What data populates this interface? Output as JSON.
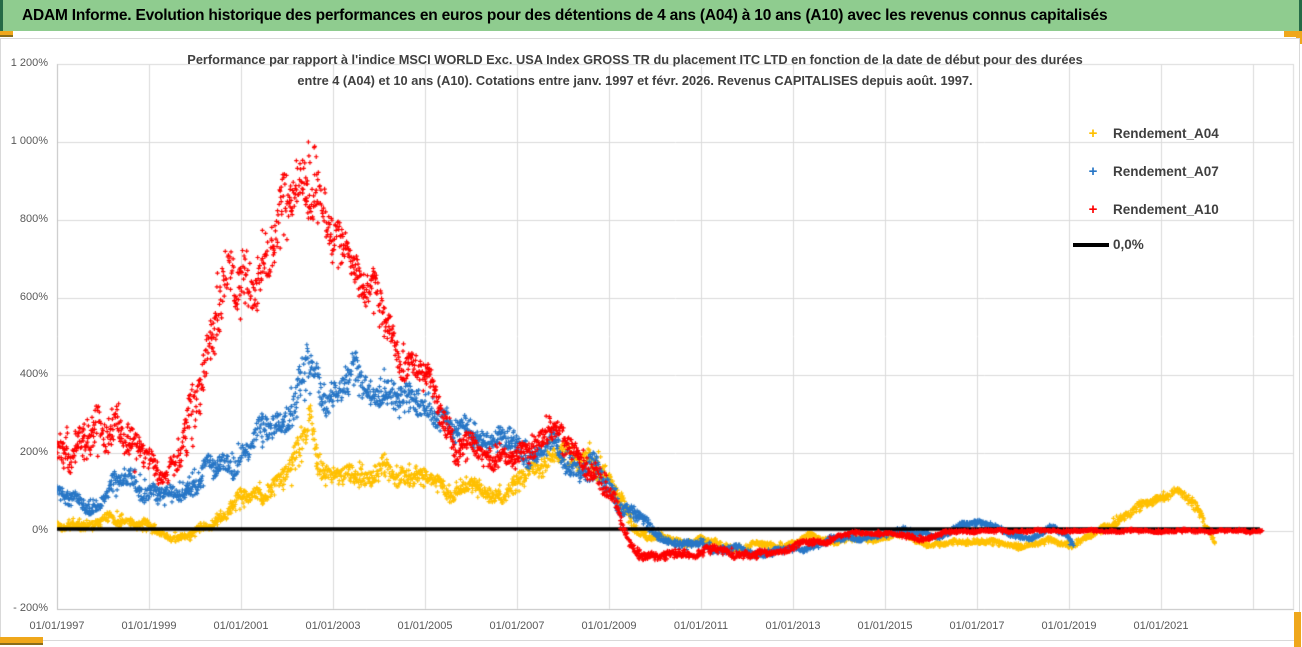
{
  "banner": {
    "title": "ADAM Informe. Evolution historique des performances en euros pour des détentions de 4 ans (A04) à 10 ans (A10) avec les revenus connus capitalisés"
  },
  "chart": {
    "title_line1": "Performance par rapport à l'indice MSCI WORLD Exc. USA Index GROSS TR  du placement ITC LTD en fonction de la date de début pour des durées",
    "title_line2": "entre 4 (A04) et 10 ans (A10). Cotations entre janv. 1997 et févr. 2026. Revenus CAPITALISES depuis août. 1997.",
    "legend": [
      {
        "label": "Rendement_A04",
        "marker": "plus",
        "color": "#FFC000"
      },
      {
        "label": "Rendement_A07",
        "marker": "plus",
        "color": "#2776C6"
      },
      {
        "label": "Rendement_A10",
        "marker": "plus",
        "color": "#FE0000"
      },
      {
        "label": "0,0%",
        "marker": "line",
        "color": "#000000"
      }
    ]
  },
  "chart_data": {
    "type": "scatter",
    "marker": "plus",
    "grid": true,
    "x_axis": {
      "kind": "date-start-of-holding",
      "labels": [
        "01/01/1997",
        "01/01/1999",
        "01/01/2001",
        "01/01/2003",
        "01/01/2005",
        "01/01/2007",
        "01/01/2009",
        "01/01/2011",
        "01/01/2013",
        "01/01/2015",
        "01/01/2017",
        "01/01/2019",
        "01/01/2021"
      ],
      "label_interval_years": 2,
      "range_years": [
        1997.0,
        2023.95
      ]
    },
    "y_axis": {
      "unit": "percent",
      "labels": [
        "1 200%",
        "1 000%",
        "800%",
        "600%",
        "400%",
        "200%",
        "0%",
        "- 200%"
      ],
      "tick_values": [
        1200,
        1000,
        800,
        600,
        400,
        200,
        0,
        -200
      ],
      "range_pct": [
        -200,
        1200
      ]
    },
    "zero_line": {
      "label": "0,0%",
      "value": 0,
      "color": "#000000",
      "start_year": 1997.0,
      "end_year": 2023.15
    },
    "series": [
      {
        "name": "Rendement_A04",
        "color": "#FFC000",
        "seed": 42,
        "anchors": [
          [
            1997.0,
            10,
            15
          ],
          [
            1997.4,
            20,
            15
          ],
          [
            1997.8,
            10,
            15
          ],
          [
            1998.2,
            40,
            20
          ],
          [
            1998.6,
            20,
            15
          ],
          [
            1999.0,
            10,
            15
          ],
          [
            1999.4,
            -10,
            12
          ],
          [
            1999.8,
            -20,
            12
          ],
          [
            2000.2,
            10,
            15
          ],
          [
            2000.6,
            40,
            20
          ],
          [
            2001.0,
            80,
            25
          ],
          [
            2001.4,
            100,
            30
          ],
          [
            2001.8,
            120,
            30
          ],
          [
            2002.1,
            150,
            40
          ],
          [
            2002.35,
            250,
            70
          ],
          [
            2002.5,
            320,
            50
          ],
          [
            2002.65,
            200,
            50
          ],
          [
            2002.9,
            130,
            30
          ],
          [
            2003.2,
            140,
            30
          ],
          [
            2003.5,
            160,
            35
          ],
          [
            2003.8,
            130,
            30
          ],
          [
            2004.1,
            160,
            30
          ],
          [
            2004.4,
            140,
            30
          ],
          [
            2004.7,
            150,
            30
          ],
          [
            2005.0,
            130,
            30
          ],
          [
            2005.3,
            120,
            25
          ],
          [
            2005.6,
            100,
            25
          ],
          [
            2005.9,
            120,
            25
          ],
          [
            2006.2,
            100,
            25
          ],
          [
            2006.5,
            90,
            25
          ],
          [
            2006.8,
            110,
            25
          ],
          [
            2007.1,
            130,
            30
          ],
          [
            2007.4,
            150,
            30
          ],
          [
            2007.7,
            200,
            35
          ],
          [
            2008.0,
            210,
            35
          ],
          [
            2008.3,
            170,
            30
          ],
          [
            2008.6,
            200,
            40
          ],
          [
            2008.9,
            150,
            35
          ],
          [
            2009.2,
            80,
            30
          ],
          [
            2009.5,
            20,
            20
          ],
          [
            2009.8,
            -10,
            15
          ],
          [
            2010.2,
            -20,
            12
          ],
          [
            2010.6,
            -30,
            12
          ],
          [
            2011.0,
            -20,
            12
          ],
          [
            2011.4,
            -40,
            12
          ],
          [
            2011.8,
            -45,
            12
          ],
          [
            2012.2,
            -35,
            10
          ],
          [
            2012.6,
            -40,
            10
          ],
          [
            2013.0,
            -30,
            10
          ],
          [
            2013.4,
            -15,
            10
          ],
          [
            2013.8,
            -25,
            10
          ],
          [
            2014.2,
            -20,
            8
          ],
          [
            2014.6,
            -25,
            8
          ],
          [
            2015.0,
            -15,
            8
          ],
          [
            2015.4,
            -10,
            8
          ],
          [
            2015.8,
            -30,
            8
          ],
          [
            2016.2,
            -35,
            8
          ],
          [
            2016.6,
            -30,
            8
          ],
          [
            2017.0,
            -25,
            8
          ],
          [
            2017.4,
            -30,
            8
          ],
          [
            2017.8,
            -40,
            8
          ],
          [
            2018.2,
            -35,
            8
          ],
          [
            2018.6,
            -25,
            8
          ],
          [
            2019.0,
            -35,
            10
          ],
          [
            2019.4,
            -20,
            10
          ],
          [
            2019.8,
            10,
            12
          ],
          [
            2020.2,
            40,
            15
          ],
          [
            2020.6,
            60,
            15
          ],
          [
            2021.0,
            90,
            15
          ],
          [
            2021.3,
            105,
            12
          ],
          [
            2021.6,
            80,
            15
          ],
          [
            2021.9,
            40,
            15
          ],
          [
            2022.1,
            -10,
            12
          ],
          [
            2022.17,
            -30,
            8
          ]
        ]
      },
      {
        "name": "Rendement_A07",
        "color": "#2776C6",
        "seed": 1337,
        "anchors": [
          [
            1997.0,
            100,
            30
          ],
          [
            1997.4,
            75,
            25
          ],
          [
            1997.8,
            65,
            25
          ],
          [
            1998.2,
            110,
            30
          ],
          [
            1998.6,
            140,
            35
          ],
          [
            1999.0,
            100,
            30
          ],
          [
            1999.4,
            85,
            25
          ],
          [
            1999.8,
            110,
            30
          ],
          [
            2000.2,
            150,
            40
          ],
          [
            2000.6,
            160,
            40
          ],
          [
            2001.0,
            200,
            40
          ],
          [
            2001.4,
            240,
            45
          ],
          [
            2001.8,
            290,
            50
          ],
          [
            2002.2,
            330,
            60
          ],
          [
            2002.45,
            420,
            90
          ],
          [
            2002.6,
            380,
            60
          ],
          [
            2002.9,
            350,
            50
          ],
          [
            2003.2,
            380,
            50
          ],
          [
            2003.5,
            400,
            50
          ],
          [
            2003.8,
            360,
            50
          ],
          [
            2004.1,
            380,
            45
          ],
          [
            2004.4,
            330,
            45
          ],
          [
            2004.7,
            340,
            40
          ],
          [
            2005.0,
            330,
            40
          ],
          [
            2005.3,
            290,
            40
          ],
          [
            2005.6,
            250,
            40
          ],
          [
            2005.9,
            280,
            35
          ],
          [
            2006.2,
            240,
            35
          ],
          [
            2006.5,
            220,
            35
          ],
          [
            2006.9,
            240,
            35
          ],
          [
            2007.2,
            200,
            35
          ],
          [
            2007.5,
            180,
            30
          ],
          [
            2007.8,
            230,
            40
          ],
          [
            2008.1,
            180,
            35
          ],
          [
            2008.4,
            150,
            30
          ],
          [
            2008.7,
            160,
            35
          ],
          [
            2009.0,
            120,
            35
          ],
          [
            2009.3,
            60,
            25
          ],
          [
            2009.6,
            40,
            20
          ],
          [
            2009.9,
            10,
            15
          ],
          [
            2010.2,
            -20,
            12
          ],
          [
            2010.6,
            -40,
            12
          ],
          [
            2011.0,
            -30,
            12
          ],
          [
            2011.4,
            -50,
            12
          ],
          [
            2011.8,
            -45,
            12
          ],
          [
            2012.2,
            -60,
            10
          ],
          [
            2012.6,
            -55,
            10
          ],
          [
            2013.0,
            -45,
            10
          ],
          [
            2013.4,
            -40,
            10
          ],
          [
            2013.8,
            -25,
            10
          ],
          [
            2014.2,
            -15,
            8
          ],
          [
            2014.6,
            -20,
            8
          ],
          [
            2015.0,
            -10,
            8
          ],
          [
            2015.4,
            5,
            8
          ],
          [
            2015.8,
            -10,
            8
          ],
          [
            2016.2,
            -15,
            8
          ],
          [
            2016.6,
            15,
            8
          ],
          [
            2017.0,
            20,
            8
          ],
          [
            2017.4,
            15,
            8
          ],
          [
            2017.8,
            -15,
            8
          ],
          [
            2018.2,
            -20,
            8
          ],
          [
            2018.6,
            15,
            8
          ],
          [
            2018.9,
            -10,
            10
          ],
          [
            2019.1,
            -40,
            8
          ]
        ]
      },
      {
        "name": "Rendement_A10",
        "color": "#FE0000",
        "seed": 777,
        "anchors": [
          [
            1997.0,
            200,
            60
          ],
          [
            1997.5,
            230,
            60
          ],
          [
            1998.0,
            240,
            70
          ],
          [
            1998.3,
            300,
            60
          ],
          [
            1998.7,
            200,
            60
          ],
          [
            1999.2,
            150,
            40
          ],
          [
            1999.6,
            180,
            50
          ],
          [
            2000.0,
            300,
            80
          ],
          [
            2000.3,
            500,
            90
          ],
          [
            2000.6,
            650,
            120
          ],
          [
            2000.9,
            600,
            100
          ],
          [
            2001.2,
            650,
            90
          ],
          [
            2001.5,
            700,
            90
          ],
          [
            2001.8,
            760,
            90
          ],
          [
            2002.1,
            850,
            100
          ],
          [
            2002.4,
            950,
            110
          ],
          [
            2002.6,
            900,
            100
          ],
          [
            2002.8,
            820,
            90
          ],
          [
            2003.0,
            720,
            70
          ],
          [
            2003.3,
            750,
            60
          ],
          [
            2003.6,
            650,
            70
          ],
          [
            2003.9,
            600,
            60
          ],
          [
            2004.2,
            520,
            60
          ],
          [
            2004.5,
            450,
            50
          ],
          [
            2004.8,
            420,
            50
          ],
          [
            2005.1,
            380,
            40
          ],
          [
            2005.4,
            300,
            50
          ],
          [
            2005.7,
            200,
            40
          ],
          [
            2006.0,
            220,
            40
          ],
          [
            2006.3,
            180,
            30
          ],
          [
            2006.6,
            200,
            35
          ],
          [
            2007.0,
            180,
            30
          ],
          [
            2007.4,
            220,
            40
          ],
          [
            2007.7,
            280,
            40
          ],
          [
            2008.0,
            230,
            40
          ],
          [
            2008.3,
            190,
            30
          ],
          [
            2008.6,
            170,
            40
          ],
          [
            2008.9,
            120,
            40
          ],
          [
            2009.2,
            40,
            30
          ],
          [
            2009.5,
            -40,
            20
          ],
          [
            2009.8,
            -60,
            15
          ],
          [
            2010.1,
            -70,
            12
          ],
          [
            2010.5,
            -55,
            12
          ],
          [
            2010.9,
            -60,
            12
          ],
          [
            2011.3,
            -45,
            12
          ],
          [
            2011.7,
            -55,
            12
          ],
          [
            2012.1,
            -65,
            12
          ],
          [
            2012.5,
            -55,
            10
          ],
          [
            2012.9,
            -45,
            10
          ],
          [
            2013.3,
            -30,
            10
          ],
          [
            2013.7,
            -25,
            10
          ],
          [
            2014.1,
            -10,
            8
          ],
          [
            2014.5,
            -5,
            6
          ],
          [
            2015.0,
            -5,
            6
          ],
          [
            2015.5,
            -15,
            8
          ],
          [
            2015.9,
            -20,
            8
          ],
          [
            2016.3,
            -5,
            6
          ],
          [
            2016.8,
            0,
            5
          ],
          [
            2017.5,
            0,
            5
          ],
          [
            2018.5,
            0,
            5
          ],
          [
            2019.5,
            0,
            5
          ],
          [
            2020.5,
            0,
            5
          ],
          [
            2021.5,
            0,
            5
          ],
          [
            2022.5,
            0,
            5
          ],
          [
            2023.2,
            0,
            5
          ]
        ]
      }
    ]
  }
}
